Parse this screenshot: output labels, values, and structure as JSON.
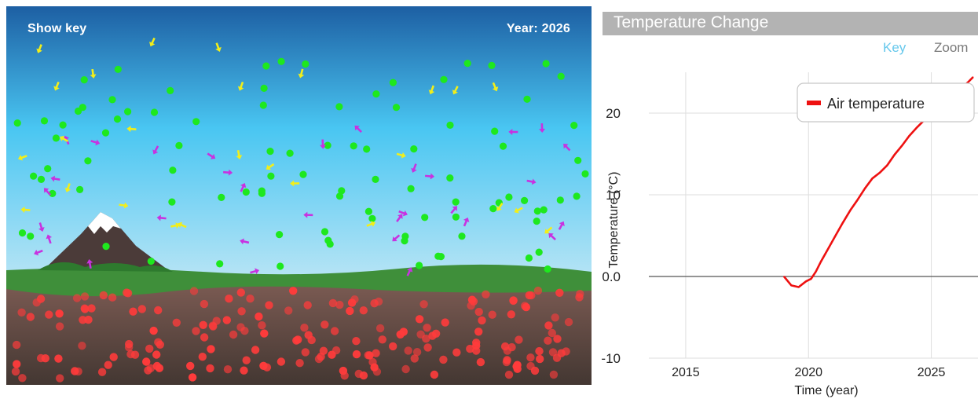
{
  "simulation": {
    "show_key_label": "Show key",
    "year_label": "Year: 2026",
    "colors": {
      "sky_top": "#1d5fa3",
      "sky_mid": "#49c6f2",
      "sky_bottom": "#b6e4f5",
      "ground": "#3f8f3a",
      "soil_top": "#7a5a52",
      "soil_bottom": "#4a3c37",
      "energy_dot": "#ff3b3b",
      "green_particle": "#1ee81e",
      "yellow_arrow": "#f2ee1a",
      "magenta_arrow": "#c832e0"
    }
  },
  "chart_panel": {
    "title": "Temperature Change",
    "key_label": "Key",
    "zoom_label": "Zoom"
  },
  "chart_data": {
    "type": "line",
    "title": "Temperature Change",
    "xlabel": "Time (year)",
    "ylabel": "Temperature (°C)",
    "xlim": [
      2013.5,
      2026.9
    ],
    "ylim": [
      -10,
      25
    ],
    "x_ticks": [
      "2015",
      "2020",
      "2025"
    ],
    "y_ticks": [
      "-10",
      "0.0",
      "10",
      "20"
    ],
    "grid": true,
    "legend_position": "top-right",
    "series": [
      {
        "name": "Air temperature",
        "color": "#ee1111",
        "x": [
          2019.0,
          2019.3,
          2019.6,
          2019.9,
          2020.1,
          2020.3,
          2020.5,
          2020.8,
          2021.1,
          2021.4,
          2021.7,
          2022.0,
          2022.3,
          2022.6,
          2022.9,
          2023.2,
          2023.5,
          2023.8,
          2024.1,
          2024.4,
          2024.7,
          2025.0,
          2025.3,
          2025.6,
          2025.9,
          2026.2,
          2026.5,
          2026.7
        ],
        "y": [
          0.0,
          -1.1,
          -1.3,
          -0.6,
          -0.3,
          0.6,
          1.8,
          3.4,
          5.0,
          6.6,
          8.1,
          9.4,
          10.8,
          12.0,
          12.7,
          13.6,
          14.9,
          16.0,
          17.2,
          18.2,
          19.1,
          20.0,
          20.9,
          21.6,
          22.3,
          23.0,
          23.8,
          24.4
        ]
      }
    ]
  }
}
